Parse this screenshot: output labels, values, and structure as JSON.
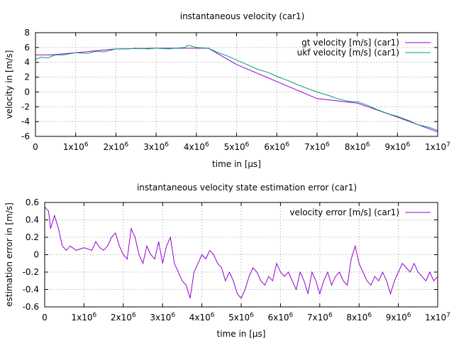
{
  "chart_data": [
    {
      "type": "line",
      "title": "instantaneous velocity (car1)",
      "xlabel": "time in [µs]",
      "ylabel": "velocity in [m/s]",
      "xlim": [
        0,
        10000000
      ],
      "ylim": [
        -6,
        8
      ],
      "grid": true,
      "legend_position": "top-right",
      "x_ticks": [
        "0",
        "1x10",
        "2x10",
        "3x10",
        "4x10",
        "5x10",
        "6x10",
        "7x10",
        "8x10",
        "9x10",
        "1x10"
      ],
      "x_tick_exponents": [
        "",
        "6",
        "6",
        "6",
        "6",
        "6",
        "6",
        "6",
        "6",
        "6",
        "7"
      ],
      "y_ticks": [
        "8",
        "6",
        "4",
        "2",
        "0",
        "-2",
        "-4",
        "-6"
      ],
      "series": [
        {
          "name": "gt velocity [m/s] (car1)",
          "color": "#9400d3",
          "x": [
            0,
            400000,
            1000000,
            2000000,
            3000000,
            4300000,
            5000000,
            6000000,
            7000000,
            8000000,
            9000000,
            10000000
          ],
          "y": [
            5.0,
            5.0,
            5.3,
            5.8,
            5.9,
            5.9,
            3.7,
            1.4,
            -0.9,
            -1.5,
            -3.4,
            -5.4
          ]
        },
        {
          "name": "ukf velocity [m/s] (car1)",
          "color": "#009e73",
          "x": [
            0,
            150000,
            300000,
            500000,
            700000,
            1000000,
            1300000,
            1500000,
            1700000,
            2000000,
            2300000,
            2500000,
            2800000,
            3000000,
            3300000,
            3500000,
            3700000,
            3800000,
            4000000,
            4300000,
            4500000,
            4800000,
            5000000,
            5300000,
            5500000,
            5800000,
            6000000,
            6300000,
            6500000,
            6800000,
            7000000,
            7300000,
            7500000,
            7800000,
            8000000,
            8300000,
            8500000,
            8800000,
            9000000,
            9300000,
            9500000,
            9800000,
            10000000
          ],
          "y": [
            4.4,
            4.7,
            4.6,
            5.0,
            5.0,
            5.3,
            5.2,
            5.5,
            5.4,
            5.8,
            5.8,
            5.9,
            5.8,
            5.9,
            5.8,
            5.9,
            6.0,
            6.3,
            6.0,
            5.9,
            5.4,
            4.8,
            4.3,
            3.6,
            3.1,
            2.6,
            2.1,
            1.5,
            1.0,
            0.4,
            0.0,
            -0.5,
            -0.9,
            -1.3,
            -1.3,
            -1.9,
            -2.4,
            -3.0,
            -3.3,
            -3.9,
            -4.4,
            -4.8,
            -5.2
          ]
        }
      ]
    },
    {
      "type": "line",
      "title": "instantaneous velocity state estimation error (car1)",
      "xlabel": "time in [µs]",
      "ylabel": "estimation error in [m/s]",
      "xlim": [
        0,
        10000000
      ],
      "ylim": [
        -0.6,
        0.6
      ],
      "grid": true,
      "legend_position": "top-right",
      "x_ticks": [
        "0",
        "1x10",
        "2x10",
        "3x10",
        "4x10",
        "5x10",
        "6x10",
        "7x10",
        "8x10",
        "9x10",
        "1x10"
      ],
      "x_tick_exponents": [
        "",
        "6",
        "6",
        "6",
        "6",
        "6",
        "6",
        "6",
        "6",
        "6",
        "7"
      ],
      "y_ticks": [
        "0.6",
        "0.4",
        "0.2",
        "0",
        "-0.2",
        "-0.4",
        "-0.6"
      ],
      "series": [
        {
          "name": "velocity error [m/s] (car1)",
          "color": "#9400d3",
          "x": [
            0,
            100000,
            150000,
            250000,
            350000,
            450000,
            550000,
            650000,
            800000,
            1000000,
            1200000,
            1300000,
            1400000,
            1500000,
            1600000,
            1700000,
            1800000,
            1900000,
            2000000,
            2100000,
            2200000,
            2300000,
            2400000,
            2500000,
            2600000,
            2700000,
            2800000,
            2900000,
            3000000,
            3100000,
            3200000,
            3300000,
            3400000,
            3500000,
            3600000,
            3700000,
            3800000,
            3900000,
            4000000,
            4100000,
            4200000,
            4300000,
            4400000,
            4500000,
            4600000,
            4700000,
            4800000,
            4900000,
            5000000,
            5100000,
            5200000,
            5300000,
            5400000,
            5500000,
            5600000,
            5700000,
            5800000,
            5900000,
            6000000,
            6100000,
            6200000,
            6300000,
            6400000,
            6500000,
            6600000,
            6700000,
            6800000,
            6900000,
            7000000,
            7100000,
            7200000,
            7300000,
            7400000,
            7500000,
            7600000,
            7700000,
            7800000,
            7900000,
            8000000,
            8100000,
            8200000,
            8300000,
            8400000,
            8500000,
            8600000,
            8700000,
            8800000,
            8900000,
            9000000,
            9100000,
            9200000,
            9300000,
            9400000,
            9500000,
            9600000,
            9700000,
            9800000,
            9900000,
            10000000
          ],
          "y": [
            0.55,
            0.5,
            0.3,
            0.45,
            0.3,
            0.1,
            0.05,
            0.1,
            0.05,
            0.08,
            0.05,
            0.15,
            0.08,
            0.05,
            0.1,
            0.2,
            0.25,
            0.1,
            0.0,
            -0.05,
            0.3,
            0.2,
            0.0,
            -0.1,
            0.1,
            0.0,
            -0.05,
            0.15,
            -0.1,
            0.1,
            0.2,
            -0.1,
            -0.2,
            -0.3,
            -0.35,
            -0.5,
            -0.2,
            -0.1,
            0.0,
            -0.05,
            0.05,
            0.0,
            -0.1,
            -0.15,
            -0.3,
            -0.2,
            -0.3,
            -0.45,
            -0.5,
            -0.4,
            -0.25,
            -0.15,
            -0.2,
            -0.3,
            -0.35,
            -0.25,
            -0.3,
            -0.1,
            -0.2,
            -0.25,
            -0.2,
            -0.3,
            -0.4,
            -0.2,
            -0.3,
            -0.45,
            -0.2,
            -0.3,
            -0.45,
            -0.3,
            -0.2,
            -0.35,
            -0.25,
            -0.2,
            -0.3,
            -0.35,
            -0.05,
            0.1,
            -0.1,
            -0.2,
            -0.3,
            -0.35,
            -0.25,
            -0.3,
            -0.2,
            -0.3,
            -0.45,
            -0.3,
            -0.2,
            -0.1,
            -0.15,
            -0.2,
            -0.1,
            -0.2,
            -0.25,
            -0.3,
            -0.2,
            -0.3,
            -0.25
          ]
        }
      ]
    }
  ]
}
